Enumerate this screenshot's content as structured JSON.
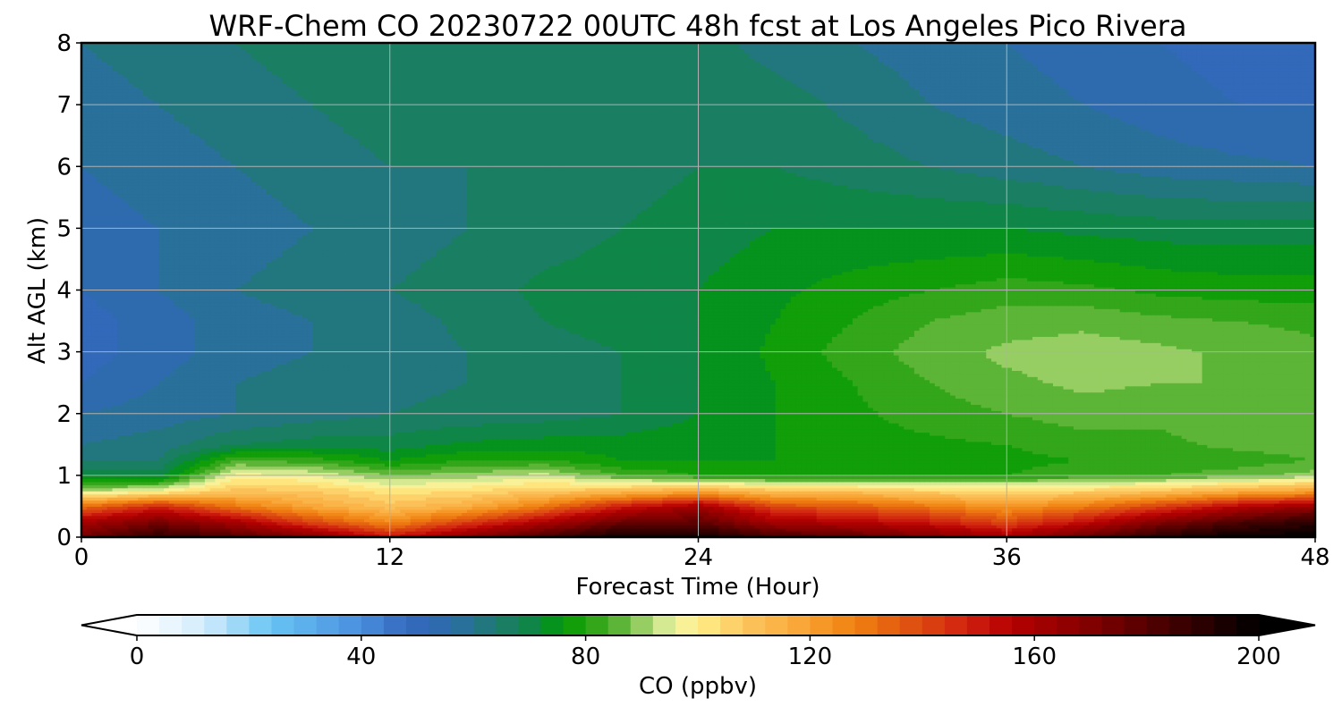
{
  "chart_data": [
    {
      "type": "heatmap",
      "title": "WRF-Chem CO  20230722 00UTC 48h fcst at Los Angeles Pico Rivera",
      "xlabel": "Forecast Time (Hour)",
      "ylabel": "Alt AGL (km)",
      "xlim": [
        0,
        48
      ],
      "ylim": [
        0,
        8
      ],
      "xticks": [
        0,
        12,
        24,
        36,
        48
      ],
      "yticks": [
        0,
        1,
        2,
        3,
        4,
        5,
        6,
        7,
        8
      ],
      "grid": true,
      "x": [
        0,
        3,
        6,
        9,
        12,
        15,
        18,
        21,
        24,
        27,
        30,
        33,
        36,
        39,
        42,
        45,
        48
      ],
      "y": [
        0,
        0.25,
        0.5,
        0.75,
        1,
        1.25,
        1.5,
        2,
        2.5,
        3,
        3.5,
        4,
        5,
        6,
        7,
        8
      ],
      "z": [
        [
          175,
          190,
          182,
          172,
          152,
          170,
          185,
          198,
          198,
          185,
          180,
          172,
          162,
          178,
          192,
          200,
          200
        ],
        [
          160,
          172,
          160,
          140,
          125,
          142,
          158,
          175,
          178,
          160,
          156,
          150,
          140,
          152,
          170,
          182,
          190
        ],
        [
          132,
          148,
          130,
          118,
          110,
          116,
          130,
          150,
          162,
          140,
          136,
          130,
          122,
          130,
          142,
          156,
          165
        ],
        [
          92,
          98,
          110,
          108,
          102,
          104,
          108,
          112,
          118,
          110,
          110,
          106,
          104,
          106,
          110,
          116,
          120
        ],
        [
          70,
          70,
          98,
          96,
          88,
          90,
          94,
          84,
          80,
          78,
          77,
          78,
          80,
          82,
          84,
          86,
          90
        ],
        [
          64,
          64,
          84,
          82,
          76,
          80,
          80,
          76,
          76,
          76,
          77,
          78,
          79,
          80,
          81,
          82,
          84
        ],
        [
          60,
          62,
          68,
          70,
          70,
          73,
          74,
          74,
          75,
          76,
          78,
          79,
          80,
          82,
          83,
          85,
          86
        ],
        [
          56,
          58,
          60,
          62,
          64,
          65,
          66,
          68,
          72,
          76,
          79,
          82,
          84,
          86,
          85,
          87,
          88
        ],
        [
          52,
          56,
          60,
          62,
          63,
          64,
          66,
          68,
          72,
          76,
          80,
          84,
          87,
          89,
          88,
          88,
          86
        ],
        [
          50,
          54,
          58,
          60,
          62,
          64,
          66,
          68,
          72,
          77,
          82,
          86,
          89,
          90,
          89,
          87,
          85
        ],
        [
          50,
          54,
          58,
          60,
          62,
          65,
          68,
          70,
          72,
          76,
          80,
          84,
          86,
          87,
          85,
          84,
          83
        ],
        [
          52,
          56,
          60,
          62,
          64,
          66,
          69,
          70,
          72,
          75,
          78,
          80,
          82,
          81,
          79,
          78,
          78
        ],
        [
          54,
          56,
          58,
          60,
          62,
          64,
          66,
          68,
          70,
          72,
          72,
          72,
          72,
          71,
          70,
          70,
          70
        ],
        [
          56,
          58,
          60,
          62,
          64,
          64,
          65,
          66,
          68,
          68,
          66,
          64,
          62,
          60,
          58,
          57,
          56
        ],
        [
          58,
          60,
          62,
          64,
          66,
          66,
          66,
          66,
          68,
          66,
          63,
          60,
          58,
          56,
          54,
          52,
          52
        ],
        [
          60,
          62,
          64,
          66,
          68,
          68,
          66,
          66,
          66,
          62,
          60,
          58,
          56,
          54,
          52,
          50,
          50
        ]
      ],
      "colorbar": {
        "label": "CO  (ppbv)",
        "min": 0,
        "max": 200,
        "step": 4,
        "ticks": [
          0,
          40,
          80,
          120,
          160,
          200
        ],
        "extend": "both",
        "colormap": [
          [
            0,
            "#ffffff"
          ],
          [
            12,
            "#d3ecfb"
          ],
          [
            24,
            "#66c4f2"
          ],
          [
            40,
            "#4a8ede"
          ],
          [
            48,
            "#3468be"
          ],
          [
            56,
            "#2c6ca8"
          ],
          [
            64,
            "#1f7a70"
          ],
          [
            72,
            "#0a8a3a"
          ],
          [
            76,
            "#009a00"
          ],
          [
            84,
            "#44aa22"
          ],
          [
            88,
            "#74c04a"
          ],
          [
            92,
            "#b8dc7c"
          ],
          [
            96,
            "#f2f4a8"
          ],
          [
            100,
            "#ffee88"
          ],
          [
            108,
            "#fcc860"
          ],
          [
            120,
            "#f8a030"
          ],
          [
            128,
            "#f08010"
          ],
          [
            140,
            "#dc4810"
          ],
          [
            148,
            "#d02010"
          ],
          [
            156,
            "#b40000"
          ],
          [
            168,
            "#8a0000"
          ],
          [
            184,
            "#440000"
          ],
          [
            196,
            "#100000"
          ],
          [
            200,
            "#000000"
          ]
        ],
        "under_color": "#ffffff",
        "over_color": "#000000"
      }
    }
  ]
}
